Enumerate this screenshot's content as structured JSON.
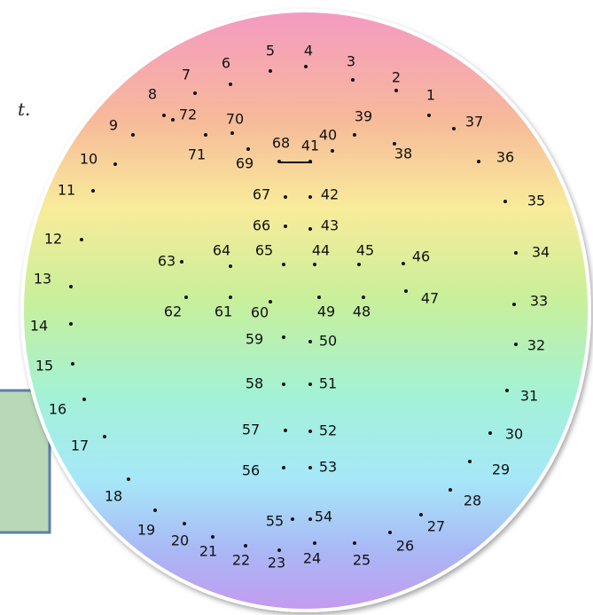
{
  "fragment_text": "t.",
  "dots": [
    "1",
    "2",
    "3",
    "4",
    "5",
    "6",
    "7",
    "8",
    "9",
    "10",
    "11",
    "12",
    "13",
    "14",
    "15",
    "16",
    "17",
    "18",
    "19",
    "20",
    "21",
    "22",
    "23",
    "24",
    "25",
    "26",
    "27",
    "28",
    "29",
    "30",
    "31",
    "32",
    "33",
    "34",
    "35",
    "36",
    "37",
    "38",
    "39",
    "40",
    "41",
    "42",
    "43",
    "44",
    "45",
    "46",
    "47",
    "48",
    "49",
    "50",
    "51",
    "52",
    "53",
    "54",
    "55",
    "56",
    "57",
    "58",
    "59",
    "60",
    "61",
    "62",
    "63",
    "64",
    "65",
    "66",
    "67",
    "68",
    "69",
    "70",
    "71",
    "72"
  ]
}
